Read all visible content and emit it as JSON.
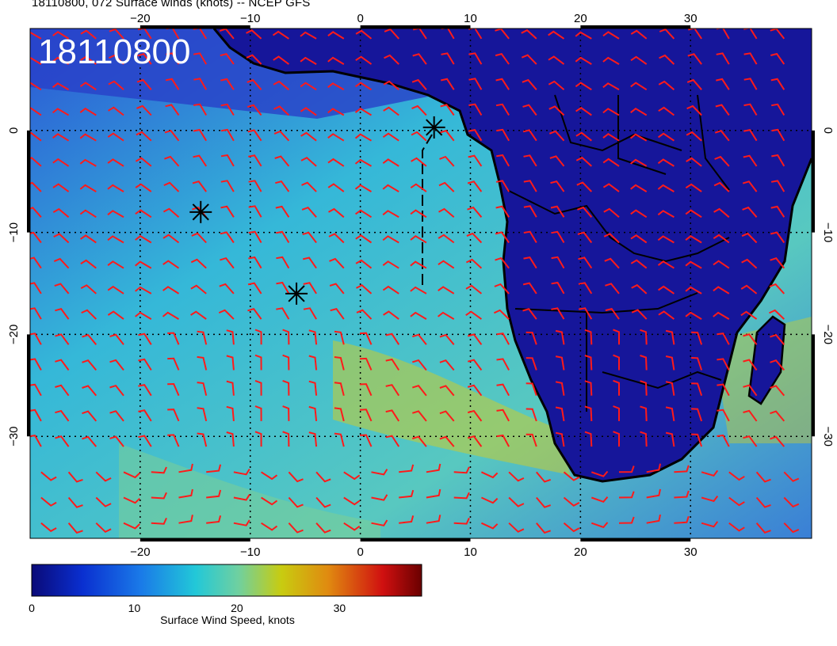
{
  "figure": {
    "title": "18110800, 072 Surface winds (knots) -- NCEP GFS",
    "stamp": "18110800"
  },
  "map": {
    "lon_range": [
      -30,
      41
    ],
    "lat_range": [
      -40,
      10
    ],
    "lon_ticks": [
      -20,
      -10,
      0,
      10,
      20,
      30
    ],
    "lat_ticks": [
      0,
      -10,
      -20,
      -30
    ],
    "lon_tick_labels": [
      "−20",
      "−10",
      "0",
      "10",
      "20",
      "30"
    ],
    "lat_tick_labels": [
      "0",
      "−10",
      "−20",
      "−30"
    ],
    "markers": [
      {
        "name": "star-marker-1",
        "lon": -14.5,
        "lat": -8.0
      },
      {
        "name": "star-marker-2",
        "lon": -5.8,
        "lat": -16.0
      },
      {
        "name": "star-marker-3",
        "lon": 6.7,
        "lat": 0.3
      }
    ],
    "barb_color": "#ff1a1a",
    "land_color": "#1a1a9a",
    "ocean_color": "#2a60d8"
  },
  "colorbar": {
    "label": "Surface Wind Speed, knots",
    "min": 0,
    "max": 38,
    "ticks": [
      {
        "value": 0,
        "label": "0"
      },
      {
        "value": 10,
        "label": "10"
      },
      {
        "value": 20,
        "label": "20"
      },
      {
        "value": 30,
        "label": "30"
      }
    ],
    "colormap": [
      "#0a0a78",
      "#0a2fd0",
      "#1a7ae8",
      "#22c8d8",
      "#6fd0a0",
      "#c8cc10",
      "#e08a10",
      "#d01010",
      "#6a0000"
    ]
  }
}
